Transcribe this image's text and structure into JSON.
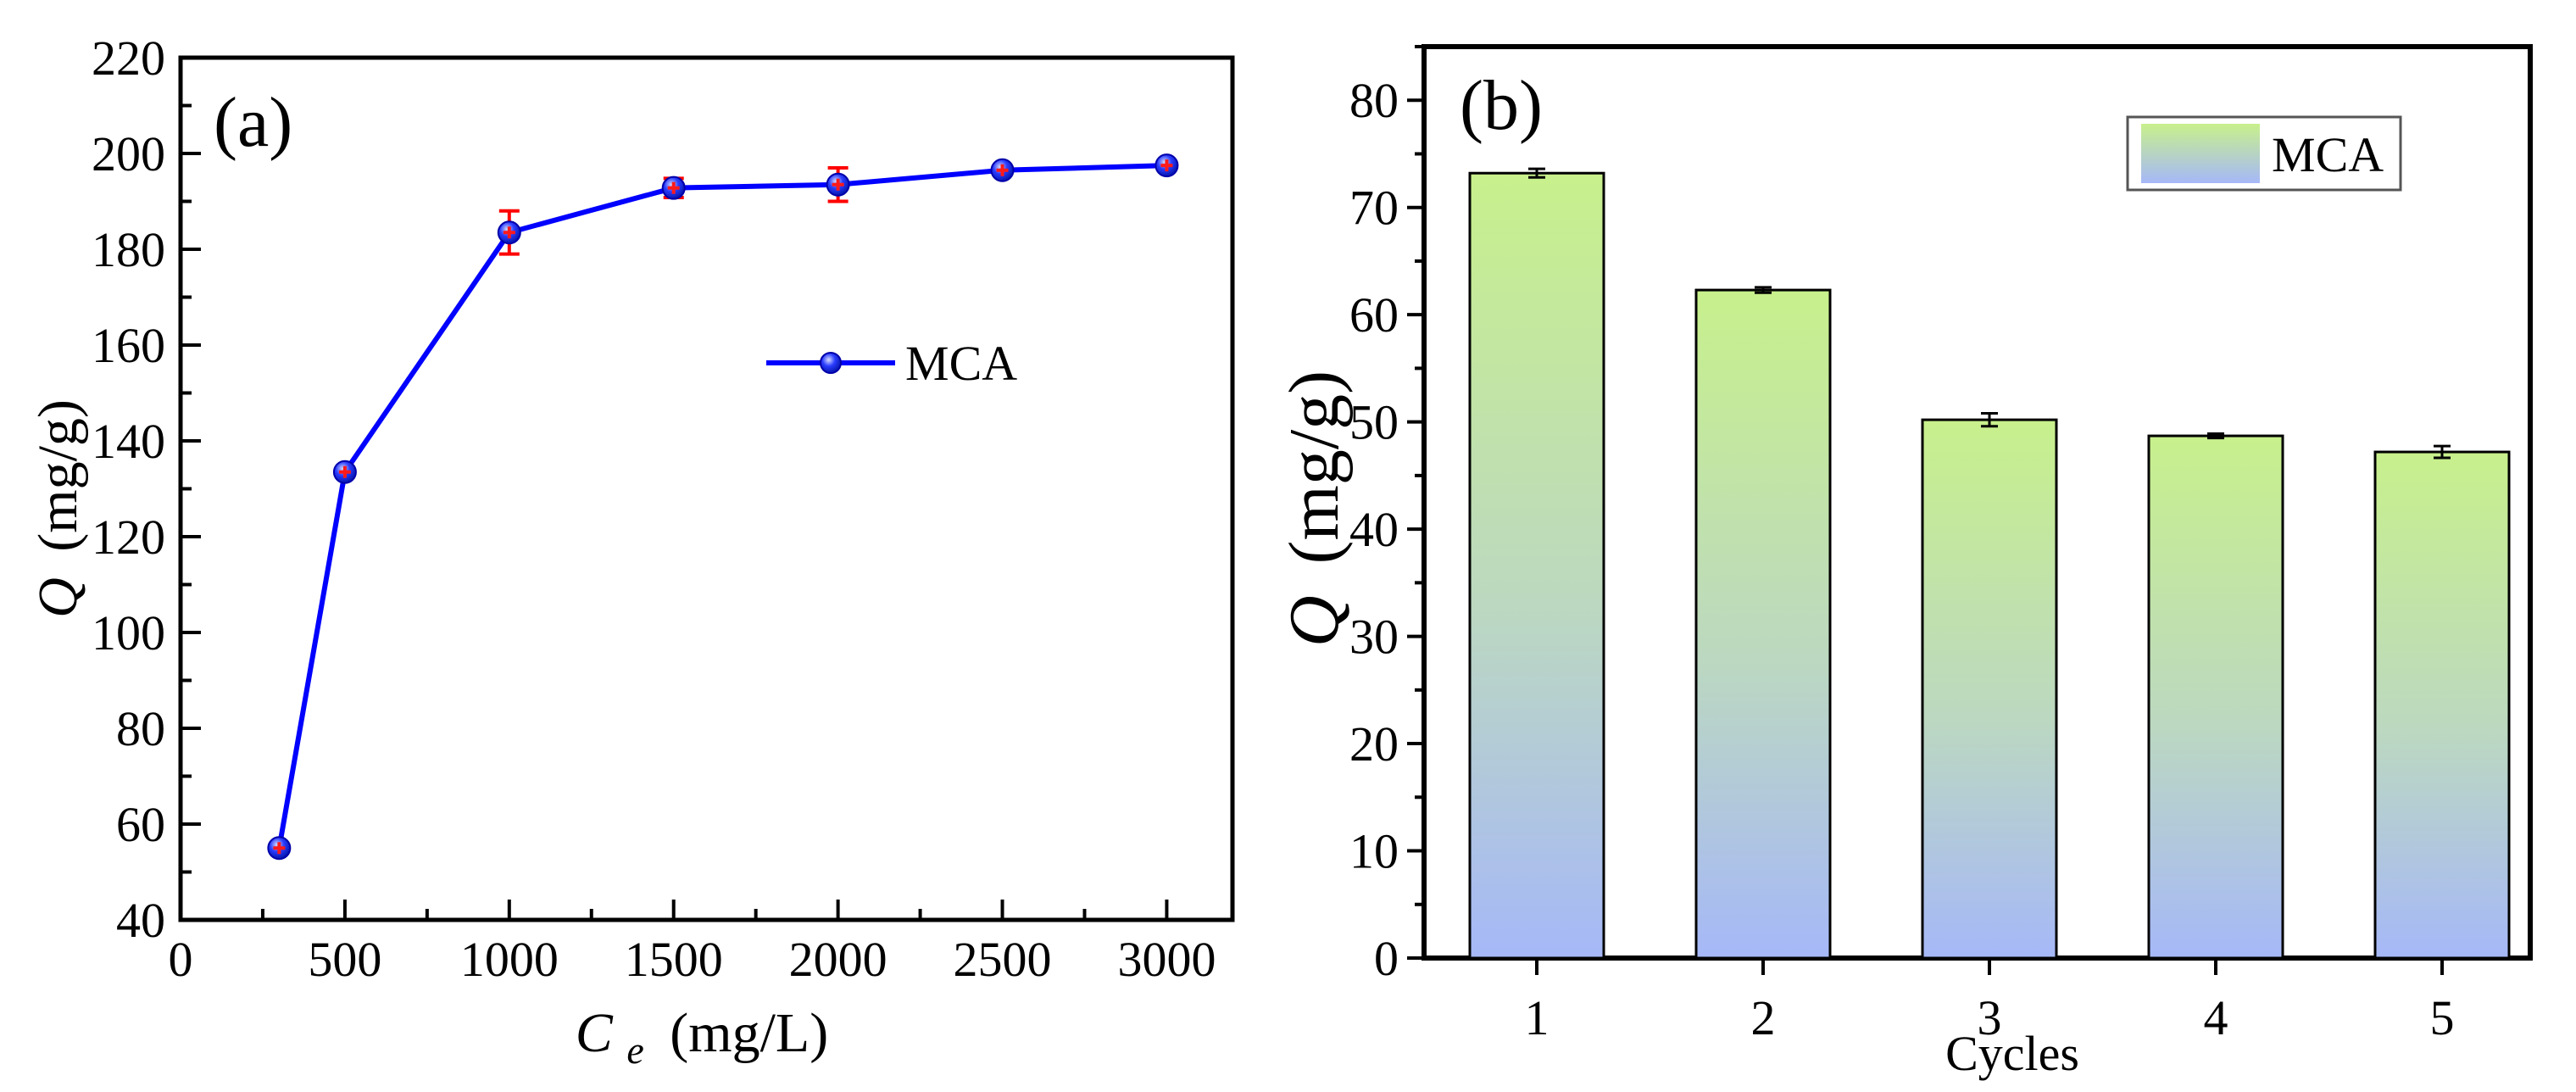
{
  "colors": {
    "line": "#0000ff",
    "marker_fill": "#2a3cff",
    "marker_core": "#ff1a1a",
    "error_bar_a": "#ff0000",
    "axis": "#000000",
    "bar_top": "#c8f08c",
    "bar_mid": "#bcd8c0",
    "bar_bottom": "#a6b8f8",
    "error_bar_b": "#000000"
  },
  "chart_data": [
    {
      "panel": "a",
      "type": "line",
      "label": "(a)",
      "legend": [
        "MCA"
      ],
      "legend_position": "center-right",
      "ylabel_symbol": "Q",
      "ylabel_unit": "(mg/g)",
      "xlabel_symbol": "C",
      "xlabel_subscript": "e",
      "xlabel_unit": "(mg/L)",
      "xlim": [
        0,
        3200
      ],
      "ylim": [
        40,
        220
      ],
      "xticks": [
        0,
        500,
        1000,
        1500,
        2000,
        2500,
        3000
      ],
      "xtick_labels": [
        "0",
        "500",
        "1000",
        "1500",
        "2000",
        "2500",
        "3000"
      ],
      "yticks": [
        40,
        60,
        80,
        100,
        120,
        140,
        160,
        180,
        200,
        220
      ],
      "ytick_labels": [
        "40",
        "60",
        "80",
        "100",
        "120",
        "140",
        "160",
        "180",
        "200",
        "220"
      ],
      "grid": false,
      "series": [
        {
          "name": "MCA",
          "x": [
            300,
            500,
            1000,
            1500,
            2000,
            2500,
            3000
          ],
          "y": [
            55,
            133.5,
            183.5,
            192.8,
            193.5,
            196.5,
            197.5
          ],
          "err": [
            1,
            1,
            4.5,
            2,
            3.5,
            1,
            1
          ]
        }
      ]
    },
    {
      "panel": "b",
      "type": "bar",
      "label": "(b)",
      "legend": [
        "MCA"
      ],
      "legend_position": "top-right",
      "ylabel_symbol": "Q",
      "ylabel_unit": "(mg/g)",
      "xlabel": "Cycles",
      "categories": [
        "1",
        "2",
        "3",
        "4",
        "5"
      ],
      "ylim": [
        0,
        85
      ],
      "yticks": [
        0,
        10,
        20,
        30,
        40,
        50,
        60,
        70,
        80
      ],
      "ytick_labels": [
        "0",
        "10",
        "20",
        "30",
        "40",
        "50",
        "60",
        "70",
        "80"
      ],
      "grid": false,
      "series": [
        {
          "name": "MCA",
          "values": [
            73.2,
            62.3,
            50.2,
            48.7,
            47.2
          ],
          "err": [
            0.4,
            0.25,
            0.6,
            0.2,
            0.55
          ]
        }
      ]
    }
  ]
}
